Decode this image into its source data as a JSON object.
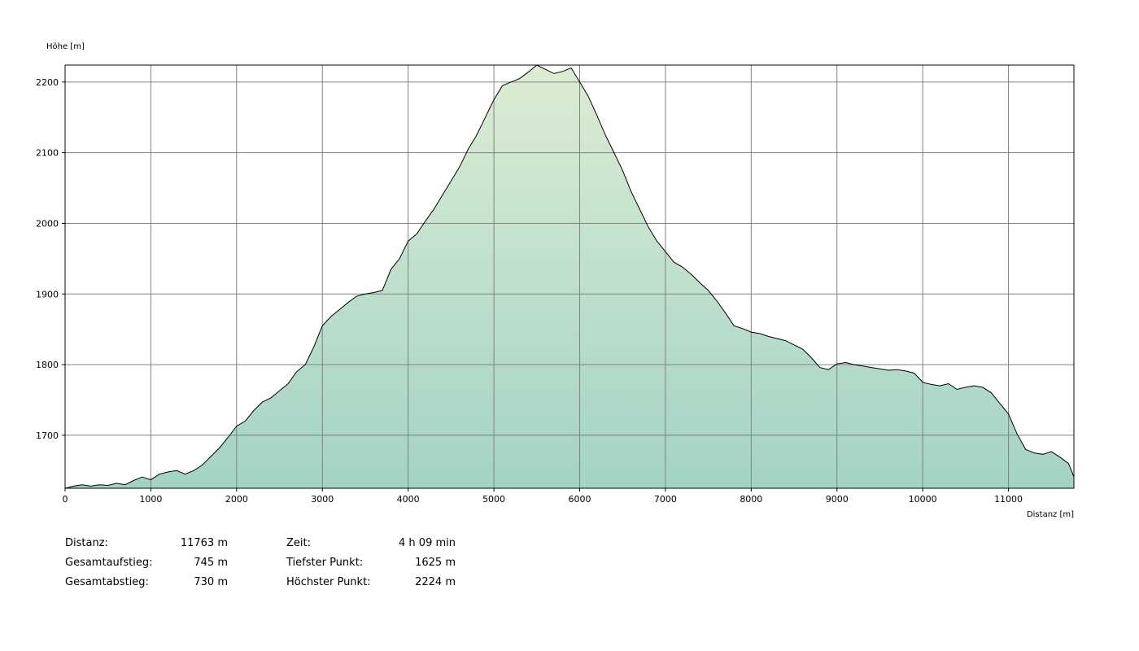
{
  "chart_data": {
    "type": "area",
    "ylabel": "Höhe [m]",
    "xlabel": "Distanz [m]",
    "xlim": [
      0,
      11763
    ],
    "ylim": [
      1625,
      2224
    ],
    "xticks": [
      0,
      1000,
      2000,
      3000,
      4000,
      5000,
      6000,
      7000,
      8000,
      9000,
      10000,
      11000
    ],
    "yticks": [
      1700,
      1800,
      1900,
      2000,
      2100,
      2200
    ],
    "grid": true,
    "colors": {
      "fill_top": "#dcedd2",
      "fill_bottom": "#a3d3c6",
      "line": "#000000",
      "grid": "#808080"
    },
    "series": [
      {
        "x": [
          0,
          100,
          200,
          300,
          400,
          500,
          600,
          700,
          800,
          900,
          1000,
          1100,
          1200,
          1300,
          1400,
          1500,
          1600,
          1700,
          1800,
          1900,
          2000,
          2100,
          2200,
          2300,
          2400,
          2500,
          2600,
          2700,
          2800,
          2900,
          3000,
          3100,
          3200,
          3300,
          3400,
          3500,
          3600,
          3700,
          3800,
          3900,
          4000,
          4100,
          4200,
          4300,
          4400,
          4500,
          4600,
          4700,
          4800,
          4900,
          5000,
          5100,
          5200,
          5300,
          5400,
          5500,
          5600,
          5700,
          5800,
          5900,
          6000,
          6100,
          6200,
          6300,
          6400,
          6500,
          6600,
          6700,
          6800,
          6900,
          7000,
          7100,
          7200,
          7300,
          7400,
          7500,
          7600,
          7700,
          7800,
          7900,
          8000,
          8100,
          8200,
          8300,
          8400,
          8500,
          8600,
          8700,
          8800,
          8900,
          9000,
          9100,
          9200,
          9300,
          9400,
          9500,
          9600,
          9700,
          9800,
          9900,
          10000,
          10100,
          10200,
          10300,
          10400,
          10500,
          10600,
          10700,
          10800,
          10900,
          11000,
          11100,
          11200,
          11300,
          11400,
          11500,
          11600,
          11700,
          11763
        ],
        "y": [
          1625,
          1628,
          1630,
          1628,
          1630,
          1629,
          1632,
          1630,
          1636,
          1641,
          1637,
          1645,
          1648,
          1650,
          1645,
          1650,
          1658,
          1670,
          1682,
          1697,
          1713,
          1720,
          1735,
          1747,
          1753,
          1763,
          1773,
          1790,
          1800,
          1825,
          1855,
          1868,
          1878,
          1888,
          1897,
          1900,
          1902,
          1905,
          1935,
          1950,
          1975,
          1985,
          2003,
          2020,
          2040,
          2060,
          2080,
          2105,
          2125,
          2150,
          2175,
          2195,
          2200,
          2205,
          2214,
          2224,
          2218,
          2212,
          2215,
          2220,
          2200,
          2180,
          2153,
          2125,
          2100,
          2075,
          2045,
          2020,
          1995,
          1975,
          1960,
          1945,
          1938,
          1928,
          1916,
          1905,
          1890,
          1873,
          1855,
          1851,
          1846,
          1844,
          1840,
          1837,
          1834,
          1828,
          1822,
          1810,
          1796,
          1793,
          1801,
          1803,
          1800,
          1798,
          1796,
          1794,
          1792,
          1793,
          1791,
          1788,
          1775,
          1772,
          1770,
          1773,
          1765,
          1768,
          1770,
          1768,
          1760,
          1745,
          1730,
          1702,
          1680,
          1675,
          1673,
          1677,
          1669,
          1660,
          1641
        ]
      }
    ]
  },
  "stats_left": [
    {
      "label": "Distanz:",
      "value": "11763 m"
    },
    {
      "label": "Gesamtaufstieg:",
      "value": "745 m"
    },
    {
      "label": "Gesamtabstieg:",
      "value": "730 m"
    }
  ],
  "stats_right": [
    {
      "label": "Zeit:",
      "value": "4 h 09 min"
    },
    {
      "label": "Tiefster Punkt:",
      "value": "1625 m"
    },
    {
      "label": "Höchster Punkt:",
      "value": "2224 m"
    }
  ]
}
